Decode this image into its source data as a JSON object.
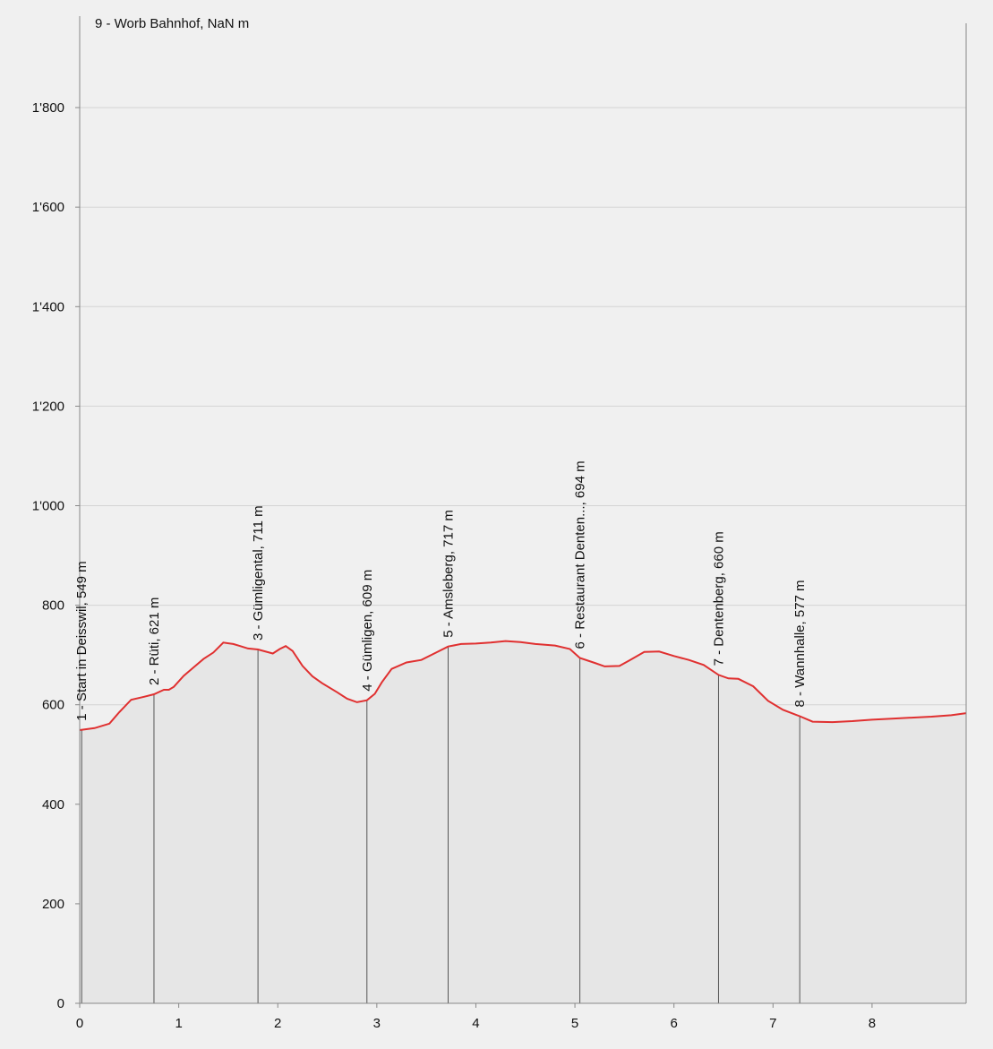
{
  "chart_data": {
    "type": "area",
    "title": "",
    "xlabel": "",
    "ylabel": "",
    "xlim": [
      0,
      8.95
    ],
    "ylim": [
      0,
      1990
    ],
    "grid": true,
    "x_ticks": [
      "0",
      "1",
      "2",
      "3",
      "4",
      "5",
      "6",
      "7",
      "8"
    ],
    "y_ticks": [
      "0",
      "200",
      "400",
      "600",
      "800",
      "1'000",
      "1'200",
      "1'400",
      "1'600",
      "1'800"
    ],
    "colors": {
      "line": "#e03030",
      "fill": "#e6e6e6",
      "grid": "#d4d4d4",
      "axis": "#888888",
      "marker": "#555555",
      "background": "#f0f0f0"
    },
    "series": [
      {
        "x": [
          0,
          0.15,
          0.3,
          0.4,
          0.52,
          0.65,
          0.75,
          0.85,
          0.9,
          0.95,
          1.05,
          1.15,
          1.25,
          1.35,
          1.45,
          1.55,
          1.62,
          1.7,
          1.8,
          1.95,
          2.02,
          2.08,
          2.15,
          2.25,
          2.35,
          2.45,
          2.6,
          2.7,
          2.8,
          2.9,
          2.98,
          3.05,
          3.15,
          3.3,
          3.45,
          3.6,
          3.72,
          3.85,
          4.0,
          4.15,
          4.3,
          4.45,
          4.6,
          4.8,
          4.95,
          5.05,
          5.2,
          5.3,
          5.45,
          5.55,
          5.7,
          5.85,
          6.0,
          6.15,
          6.3,
          6.45,
          6.55,
          6.65,
          6.8,
          6.95,
          7.1,
          7.27,
          7.4,
          7.6,
          7.8,
          8.0,
          8.2,
          8.4,
          8.6,
          8.8,
          8.95
        ],
        "y": [
          549,
          553,
          562,
          585,
          610,
          616,
          621,
          630,
          630,
          636,
          658,
          675,
          692,
          705,
          725,
          722,
          718,
          713,
          711,
          703,
          712,
          718,
          708,
          678,
          657,
          643,
          625,
          612,
          605,
          609,
          622,
          645,
          672,
          685,
          690,
          705,
          717,
          722,
          723,
          725,
          728,
          726,
          722,
          719,
          712,
          694,
          684,
          677,
          678,
          689,
          706,
          707,
          698,
          690,
          680,
          660,
          653,
          652,
          637,
          608,
          590,
          577,
          566,
          565,
          567,
          570,
          572,
          574,
          576,
          579,
          583
        ]
      }
    ],
    "waypoints": [
      {
        "x": 0.02,
        "label": "1 - Start in Deisswil, 549 m"
      },
      {
        "x": 0.75,
        "label": "2 - Rüti, 621 m"
      },
      {
        "x": 1.8,
        "label": "3 - Gümligental, 711 m"
      },
      {
        "x": 2.9,
        "label": "4 - Gümligen, 609 m"
      },
      {
        "x": 3.72,
        "label": "5 - Amsleberg, 717 m"
      },
      {
        "x": 5.05,
        "label": "6 - Restaurant Denten..., 694 m"
      },
      {
        "x": 6.45,
        "label": "7 - Dentenberg, 660 m"
      },
      {
        "x": 7.27,
        "label": "8 - Wannhalle, 577 m"
      }
    ],
    "top_label": "9 - Worb Bahnhof, NaN m"
  }
}
